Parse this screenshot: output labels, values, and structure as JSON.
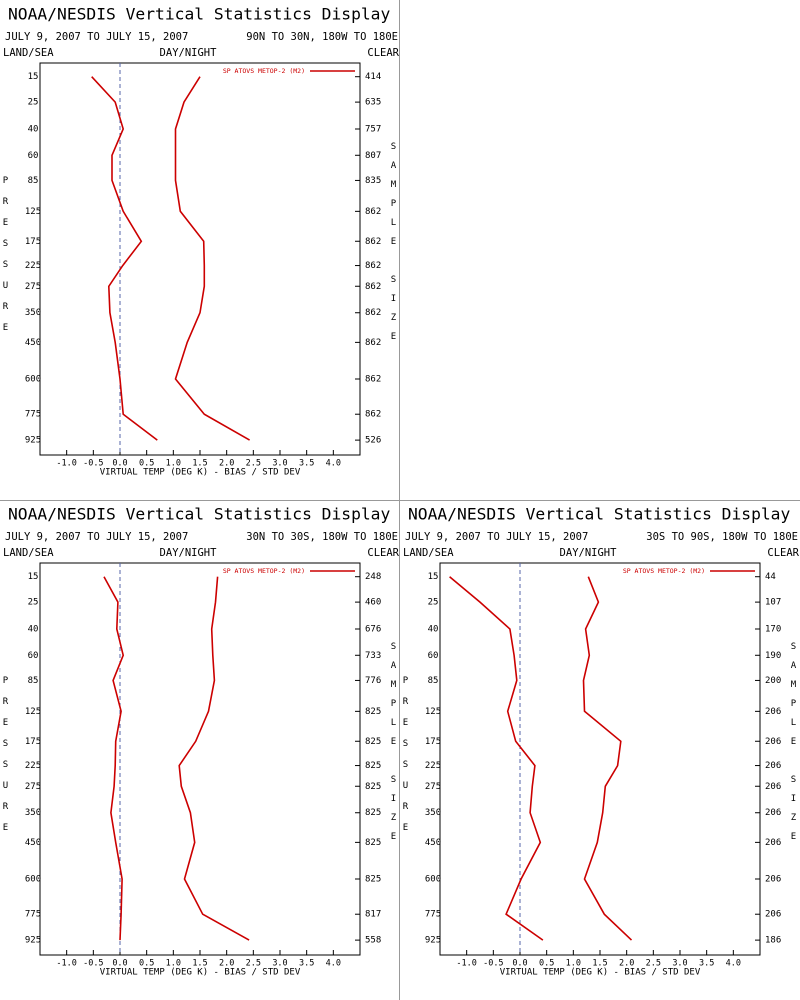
{
  "chart_data": [
    {
      "type": "line",
      "title": "NOAA/NESDIS Vertical Statistics Display",
      "date_range": "JULY 9, 2007 TO JULY 15, 2007",
      "region": "90N TO 30N, 180W TO 180E",
      "land_sea": "LAND/SEA",
      "day_night": "DAY/NIGHT",
      "clear": "CLEAR",
      "ylabel": "PRESSURE",
      "y2label": "SAMPLE SIZE",
      "xlabel": "VIRTUAL TEMP (DEG K) - BIAS / STD DEV",
      "yscale": "power",
      "yexponent": 0.286,
      "ylim": [
        11,
        1020
      ],
      "xlim": [
        -1.5,
        4.5
      ],
      "yticks": [
        15,
        25,
        40,
        60,
        85,
        125,
        175,
        225,
        275,
        350,
        450,
        600,
        775,
        925
      ],
      "sample_size": [
        414,
        635,
        757,
        807,
        835,
        862,
        862,
        862,
        862,
        862,
        862,
        862,
        862,
        526
      ],
      "xticks": [
        {
          "value": -1,
          "label": "-1.0"
        },
        {
          "value": -0.5,
          "label": "-0.5"
        },
        {
          "value": 0,
          "label": "0.0"
        },
        {
          "value": 0.5,
          "label": "0.5"
        },
        {
          "value": 1,
          "label": "1.0"
        },
        {
          "value": 1.5,
          "label": "1.5"
        },
        {
          "value": 2,
          "label": "2.0"
        },
        {
          "value": 2.5,
          "label": "2.5"
        },
        {
          "value": 3,
          "label": "3.0"
        },
        {
          "value": 3.5,
          "label": "3.5"
        },
        {
          "value": 4,
          "label": "4.0"
        }
      ],
      "series": [
        {
          "name": "SP ATOVS METOP-2 (M2)",
          "color": "#cc0000",
          "values": [
            -0.53,
            -0.09,
            0.06,
            -0.15,
            -0.15,
            0.06,
            0.4,
            0.05,
            -0.21,
            -0.19,
            -0.09,
            0.0,
            0.06,
            0.7
          ]
        },
        {
          "color": "#cc0000",
          "values": [
            1.5,
            1.2,
            1.04,
            1.04,
            1.04,
            1.13,
            1.57,
            1.58,
            1.58,
            1.5,
            1.26,
            1.04,
            1.58,
            2.43
          ]
        }
      ]
    },
    {
      "type": "line",
      "title": "NOAA/NESDIS Vertical Statistics Display",
      "date_range": "JULY 9, 2007 TO JULY 15, 2007",
      "region": "30N TO 30S, 180W TO 180E",
      "land_sea": "LAND/SEA",
      "day_night": "DAY/NIGHT",
      "clear": "CLEAR",
      "ylabel": "PRESSURE",
      "y2label": "SAMPLE SIZE",
      "xlabel": "VIRTUAL TEMP (DEG K) - BIAS / STD DEV",
      "yscale": "power",
      "yexponent": 0.286,
      "ylim": [
        11,
        1020
      ],
      "xlim": [
        -1.5,
        4.5
      ],
      "yticks": [
        15,
        25,
        40,
        60,
        85,
        125,
        175,
        225,
        275,
        350,
        450,
        600,
        775,
        925
      ],
      "sample_size": [
        248,
        460,
        676,
        733,
        776,
        825,
        825,
        825,
        825,
        825,
        825,
        825,
        817,
        558
      ],
      "xticks": [
        {
          "value": -1,
          "label": "-1.0"
        },
        {
          "value": -0.5,
          "label": "-0.5"
        },
        {
          "value": 0,
          "label": "0.0"
        },
        {
          "value": 0.5,
          "label": "0.5"
        },
        {
          "value": 1,
          "label": "1.0"
        },
        {
          "value": 1.5,
          "label": "1.5"
        },
        {
          "value": 2,
          "label": "2.0"
        },
        {
          "value": 2.5,
          "label": "2.5"
        },
        {
          "value": 3,
          "label": "3.0"
        },
        {
          "value": 3.5,
          "label": "3.5"
        },
        {
          "value": 4,
          "label": "4.0"
        }
      ],
      "series": [
        {
          "name": "SP ATOVS METOP-2 (M2)",
          "color": "#cc0000",
          "values": [
            -0.3,
            -0.04,
            -0.06,
            0.06,
            -0.13,
            0.02,
            -0.08,
            -0.09,
            -0.11,
            -0.17,
            -0.08,
            0.04,
            0.02,
            0.0
          ]
        },
        {
          "color": "#cc0000",
          "values": [
            1.83,
            1.79,
            1.72,
            1.74,
            1.77,
            1.66,
            1.42,
            1.11,
            1.15,
            1.32,
            1.4,
            1.21,
            1.55,
            2.42
          ]
        }
      ]
    },
    {
      "type": "line",
      "title": "NOAA/NESDIS Vertical Statistics Display",
      "date_range": "JULY 9, 2007 TO JULY 15, 2007",
      "region": "30S TO 90S, 180W TO 180E",
      "land_sea": "LAND/SEA",
      "day_night": "DAY/NIGHT",
      "clear": "CLEAR",
      "ylabel": "PRESSURE",
      "y2label": "SAMPLE SIZE",
      "xlabel": "VIRTUAL TEMP (DEG K) - BIAS / STD DEV",
      "yscale": "power",
      "yexponent": 0.286,
      "ylim": [
        11,
        1020
      ],
      "xlim": [
        -1.5,
        4.5
      ],
      "yticks": [
        15,
        25,
        40,
        60,
        85,
        125,
        175,
        225,
        275,
        350,
        450,
        600,
        775,
        925
      ],
      "sample_size": [
        44,
        107,
        170,
        190,
        200,
        206,
        206,
        206,
        206,
        206,
        206,
        206,
        206,
        186
      ],
      "xticks": [
        {
          "value": -1,
          "label": "-1.0"
        },
        {
          "value": -0.5,
          "label": "-0.5"
        },
        {
          "value": 0,
          "label": "0.0"
        },
        {
          "value": 0.5,
          "label": "0.5"
        },
        {
          "value": 1,
          "label": "1.0"
        },
        {
          "value": 1.5,
          "label": "1.5"
        },
        {
          "value": 2,
          "label": "2.0"
        },
        {
          "value": 2.5,
          "label": "2.5"
        },
        {
          "value": 3,
          "label": "3.0"
        },
        {
          "value": 3.5,
          "label": "3.5"
        },
        {
          "value": 4,
          "label": "4.0"
        }
      ],
      "series": [
        {
          "name": "SP ATOVS METOP-2 (M2)",
          "color": "#cc0000",
          "values": [
            -1.32,
            -0.75,
            -0.19,
            -0.11,
            -0.06,
            -0.23,
            -0.08,
            0.28,
            0.23,
            0.19,
            0.38,
            0.02,
            -0.26,
            0.43
          ]
        },
        {
          "color": "#cc0000",
          "values": [
            1.28,
            1.47,
            1.23,
            1.3,
            1.19,
            1.21,
            1.89,
            1.83,
            1.6,
            1.55,
            1.45,
            1.21,
            1.58,
            2.09
          ]
        }
      ]
    }
  ]
}
